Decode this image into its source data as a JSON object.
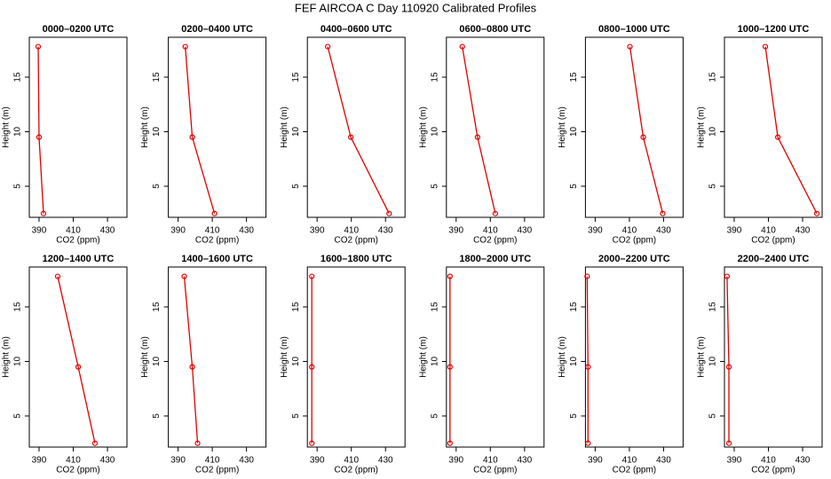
{
  "title": "FEF AIRCOA C  Day 110920  Calibrated Profiles",
  "chart_data": [
    {
      "type": "line",
      "title": "0000–0200 UTC",
      "xlabel": "CO2 (ppm)",
      "ylabel": "Height (m)",
      "x": [
        389.5,
        390,
        392.6
      ],
      "values": [
        17.8,
        9.5,
        2.5
      ],
      "xlim": [
        384.3,
        441.4
      ],
      "ylim": [
        2.15,
        18.66
      ],
      "xticks": [
        390,
        410,
        430
      ],
      "yticks": [
        5,
        10,
        15
      ],
      "color": "#e00000"
    },
    {
      "type": "line",
      "title": "0200–0400 UTC",
      "xlabel": "CO2 (ppm)",
      "ylabel": "Height (m)",
      "x": [
        394.2,
        398.3,
        411.3
      ],
      "values": [
        17.8,
        9.5,
        2.5
      ],
      "xlim": [
        384.3,
        441.4
      ],
      "ylim": [
        2.15,
        18.66
      ],
      "xticks": [
        390,
        410,
        430
      ],
      "yticks": [
        5,
        10,
        15
      ],
      "color": "#e00000"
    },
    {
      "type": "line",
      "title": "0400–0600 UTC",
      "xlabel": "CO2 (ppm)",
      "ylabel": "Height (m)",
      "x": [
        396.2,
        409.7,
        432.1
      ],
      "values": [
        17.8,
        9.5,
        2.5
      ],
      "xlim": [
        384.3,
        441.4
      ],
      "ylim": [
        2.15,
        18.66
      ],
      "xticks": [
        390,
        410,
        430
      ],
      "yticks": [
        5,
        10,
        15
      ],
      "color": "#e00000"
    },
    {
      "type": "line",
      "title": "0600–0800 UTC",
      "xlabel": "CO2 (ppm)",
      "ylabel": "Height (m)",
      "x": [
        393.6,
        402.5,
        412.9
      ],
      "values": [
        17.8,
        9.5,
        2.5
      ],
      "xlim": [
        384.3,
        441.4
      ],
      "ylim": [
        2.15,
        18.66
      ],
      "xticks": [
        390,
        410,
        430
      ],
      "yticks": [
        5,
        10,
        15
      ],
      "color": "#e00000"
    },
    {
      "type": "line",
      "title": "0800–1000 UTC",
      "xlabel": "CO2 (ppm)",
      "ylabel": "Height (m)",
      "x": [
        410.3,
        418.1,
        429.5
      ],
      "values": [
        17.8,
        9.5,
        2.5
      ],
      "xlim": [
        384.3,
        441.4
      ],
      "ylim": [
        2.15,
        18.66
      ],
      "xticks": [
        390,
        410,
        430
      ],
      "yticks": [
        5,
        10,
        15
      ],
      "color": "#e00000"
    },
    {
      "type": "line",
      "title": "1000–1200 UTC",
      "xlabel": "CO2 (ppm)",
      "ylabel": "Height (m)",
      "x": [
        408.2,
        415.5,
        438.3
      ],
      "values": [
        17.8,
        9.5,
        2.5
      ],
      "xlim": [
        384.3,
        441.4
      ],
      "ylim": [
        2.15,
        18.66
      ],
      "xticks": [
        390,
        410,
        430
      ],
      "yticks": [
        5,
        10,
        15
      ],
      "color": "#e00000"
    },
    {
      "type": "line",
      "title": "1200–1400 UTC",
      "xlabel": "CO2 (ppm)",
      "ylabel": "Height (m)",
      "x": [
        400.9,
        412.9,
        422.7
      ],
      "values": [
        17.8,
        9.5,
        2.5
      ],
      "xlim": [
        384.3,
        441.4
      ],
      "ylim": [
        2.15,
        18.66
      ],
      "xticks": [
        390,
        410,
        430
      ],
      "yticks": [
        5,
        10,
        15
      ],
      "color": "#e00000"
    },
    {
      "type": "line",
      "title": "1400–1600 UTC",
      "xlabel": "CO2 (ppm)",
      "ylabel": "Height (m)",
      "x": [
        393.6,
        398.3,
        401.4
      ],
      "values": [
        17.8,
        9.5,
        2.5
      ],
      "xlim": [
        384.3,
        441.4
      ],
      "ylim": [
        2.15,
        18.66
      ],
      "xticks": [
        390,
        410,
        430
      ],
      "yticks": [
        5,
        10,
        15
      ],
      "color": "#e00000"
    },
    {
      "type": "line",
      "title": "1600–1800 UTC",
      "xlabel": "CO2 (ppm)",
      "ylabel": "Height (m)",
      "x": [
        386.9,
        386.9,
        386.9
      ],
      "values": [
        17.8,
        9.5,
        2.5
      ],
      "xlim": [
        384.3,
        441.4
      ],
      "ylim": [
        2.15,
        18.66
      ],
      "xticks": [
        390,
        410,
        430
      ],
      "yticks": [
        5,
        10,
        15
      ],
      "color": "#e00000"
    },
    {
      "type": "line",
      "title": "1800–2000 UTC",
      "xlabel": "CO2 (ppm)",
      "ylabel": "Height (m)",
      "x": [
        386.4,
        386.4,
        386.4
      ],
      "values": [
        17.8,
        9.5,
        2.5
      ],
      "xlim": [
        384.3,
        441.4
      ],
      "ylim": [
        2.15,
        18.66
      ],
      "xticks": [
        390,
        410,
        430
      ],
      "yticks": [
        5,
        10,
        15
      ],
      "color": "#e00000"
    },
    {
      "type": "line",
      "title": "2000–2200 UTC",
      "xlabel": "CO2 (ppm)",
      "ylabel": "Height (m)",
      "x": [
        385.3,
        385.8,
        385.8
      ],
      "values": [
        17.8,
        9.5,
        2.5
      ],
      "xlim": [
        384.3,
        441.4
      ],
      "ylim": [
        2.15,
        18.66
      ],
      "xticks": [
        390,
        410,
        430
      ],
      "yticks": [
        5,
        10,
        15
      ],
      "color": "#e00000"
    },
    {
      "type": "line",
      "title": "2200–2400 UTC",
      "xlabel": "CO2 (ppm)",
      "ylabel": "Height (m)",
      "x": [
        385.8,
        386.9,
        386.9
      ],
      "values": [
        17.8,
        9.5,
        2.5
      ],
      "xlim": [
        384.3,
        441.4
      ],
      "ylim": [
        2.15,
        18.66
      ],
      "xticks": [
        390,
        410,
        430
      ],
      "yticks": [
        5,
        10,
        15
      ],
      "color": "#e00000"
    }
  ]
}
